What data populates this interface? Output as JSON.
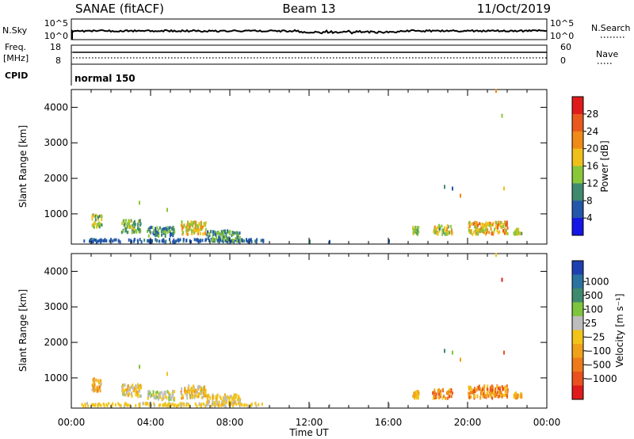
{
  "header": {
    "site": "SANAE (fitACF)",
    "beam": "Beam 13",
    "date": "11/Oct/2019"
  },
  "top_panels": {
    "nsky_label": "N.Sky",
    "nsky_ticks": [
      "10^5",
      "10^0"
    ],
    "nsearch_label": "N.Search",
    "nsearch_ticks": [
      "10^5",
      "10^0"
    ],
    "freq_label_1": "Freq.",
    "freq_label_2": "[MHz]",
    "freq_ticks": [
      "18",
      "8"
    ],
    "nave_label": "Nave",
    "nave_ticks": [
      "60",
      "0"
    ],
    "cpid_label": "CPID",
    "cpid_value": "normal 150"
  },
  "colors": {
    "power": [
      "#1515e6",
      "#2257a9",
      "#3f8a6f",
      "#8ac63a",
      "#f0c01a",
      "#f08a19",
      "#e9591e",
      "#e01b1b"
    ],
    "velocity": [
      "#1f3fb0",
      "#2a73a0",
      "#3f8a6f",
      "#7fc43e",
      "#bdbdbd",
      "#f2c419",
      "#f0a11a",
      "#ee7a1b",
      "#e9521e",
      "#e01b1b"
    ]
  },
  "chart_data": [
    {
      "type": "heatmap",
      "name": "power",
      "xlabel": "",
      "ylabel": "Slant Range [km]",
      "xlim": [
        "00:00",
        "24:00"
      ],
      "ylim": [
        150,
        4500
      ],
      "xticks": [
        "00:00",
        "04:00",
        "08:00",
        "12:00",
        "16:00",
        "20:00",
        "00:00"
      ],
      "yticks": [
        "1000",
        "2000",
        "3000",
        "4000"
      ],
      "colorbar": {
        "label": "Power [dB]",
        "ticks": [
          "28",
          "24",
          "20",
          "16",
          "12",
          "8",
          "4"
        ],
        "range": [
          0,
          30
        ]
      },
      "clusters": [
        {
          "t": [
            0.5,
            9.7
          ],
          "r": [
            180,
            260
          ],
          "v": [
            4,
            8
          ]
        },
        {
          "t": [
            1.0,
            1.5
          ],
          "r": [
            600,
            950
          ],
          "v": [
            10,
            18
          ]
        },
        {
          "t": [
            2.5,
            3.5
          ],
          "r": [
            450,
            800
          ],
          "v": [
            8,
            16
          ]
        },
        {
          "t": [
            3.8,
            5.2
          ],
          "r": [
            350,
            600
          ],
          "v": [
            6,
            14
          ]
        },
        {
          "t": [
            5.5,
            6.8
          ],
          "r": [
            400,
            750
          ],
          "v": [
            12,
            22
          ]
        },
        {
          "t": [
            6.8,
            8.5
          ],
          "r": [
            200,
            500
          ],
          "v": [
            6,
            14
          ]
        },
        {
          "t": [
            17.2,
            17.5
          ],
          "r": [
            400,
            600
          ],
          "v": [
            10,
            16
          ]
        },
        {
          "t": [
            18.2,
            19.2
          ],
          "r": [
            400,
            650
          ],
          "v": [
            10,
            20
          ]
        },
        {
          "t": [
            20.0,
            22.0
          ],
          "r": [
            400,
            750
          ],
          "v": [
            12,
            24
          ]
        },
        {
          "t": [
            22.3,
            22.7
          ],
          "r": [
            400,
            550
          ],
          "v": [
            10,
            16
          ]
        }
      ],
      "scatter": [
        {
          "t": 3.4,
          "r": 1300,
          "v": 12
        },
        {
          "t": 4.8,
          "r": 1100,
          "v": 14
        },
        {
          "t": 18.8,
          "r": 1750,
          "v": 8
        },
        {
          "t": 19.2,
          "r": 1700,
          "v": 6
        },
        {
          "t": 19.6,
          "r": 1500,
          "v": 20
        },
        {
          "t": 21.8,
          "r": 1700,
          "v": 18
        },
        {
          "t": 21.7,
          "r": 3750,
          "v": 14
        },
        {
          "t": 21.4,
          "r": 4450,
          "v": 20
        },
        {
          "t": 13.0,
          "r": 200,
          "v": 6
        },
        {
          "t": 16.0,
          "r": 220,
          "v": 6
        },
        {
          "t": 12.0,
          "r": 210,
          "v": 8
        }
      ]
    },
    {
      "type": "heatmap",
      "name": "velocity",
      "xlabel": "Time UT",
      "ylabel": "Slant Range [km]",
      "xlim": [
        "00:00",
        "24:00"
      ],
      "ylim": [
        150,
        4500
      ],
      "xticks": [
        "00:00",
        "04:00",
        "08:00",
        "12:00",
        "16:00",
        "20:00",
        "00:00"
      ],
      "yticks": [
        "1000",
        "2000",
        "3000",
        "4000"
      ],
      "colorbar": {
        "label": "Velocity [m s⁻¹]",
        "ticks": [
          "1000",
          "500",
          "100",
          "25",
          "−25",
          "−100",
          "−500",
          "−1000"
        ],
        "range": [
          -1200,
          1200
        ]
      },
      "clusters": [
        {
          "t": [
            0.5,
            9.7
          ],
          "r": [
            180,
            260
          ],
          "v": [
            -150,
            50
          ]
        },
        {
          "t": [
            1.0,
            1.5
          ],
          "r": [
            600,
            950
          ],
          "v": [
            -600,
            100
          ]
        },
        {
          "t": [
            2.5,
            3.5
          ],
          "r": [
            450,
            800
          ],
          "v": [
            -300,
            300
          ]
        },
        {
          "t": [
            3.8,
            5.2
          ],
          "r": [
            350,
            600
          ],
          "v": [
            -100,
            400
          ]
        },
        {
          "t": [
            5.5,
            6.8
          ],
          "r": [
            400,
            750
          ],
          "v": [
            -500,
            300
          ]
        },
        {
          "t": [
            6.8,
            8.5
          ],
          "r": [
            200,
            500
          ],
          "v": [
            -300,
            100
          ]
        },
        {
          "t": [
            17.2,
            17.5
          ],
          "r": [
            400,
            600
          ],
          "v": [
            -400,
            -100
          ]
        },
        {
          "t": [
            18.2,
            19.2
          ],
          "r": [
            400,
            650
          ],
          "v": [
            -900,
            -100
          ]
        },
        {
          "t": [
            20.0,
            22.0
          ],
          "r": [
            400,
            750
          ],
          "v": [
            -900,
            -100
          ]
        },
        {
          "t": [
            22.3,
            22.7
          ],
          "r": [
            400,
            550
          ],
          "v": [
            -600,
            -100
          ]
        }
      ],
      "scatter": [
        {
          "t": 3.4,
          "r": 1300,
          "v": 300
        },
        {
          "t": 4.8,
          "r": 1100,
          "v": -200
        },
        {
          "t": 18.8,
          "r": 1750,
          "v": 600
        },
        {
          "t": 19.2,
          "r": 1700,
          "v": 400
        },
        {
          "t": 19.6,
          "r": 1500,
          "v": -300
        },
        {
          "t": 21.8,
          "r": 1700,
          "v": -900
        },
        {
          "t": 21.7,
          "r": 3750,
          "v": -1000
        },
        {
          "t": 21.4,
          "r": 4450,
          "v": -200
        },
        {
          "t": 13.0,
          "r": 200,
          "v": 0
        },
        {
          "t": 16.0,
          "r": 220,
          "v": 0
        },
        {
          "t": 12.0,
          "r": 210,
          "v": 0
        }
      ]
    }
  ]
}
